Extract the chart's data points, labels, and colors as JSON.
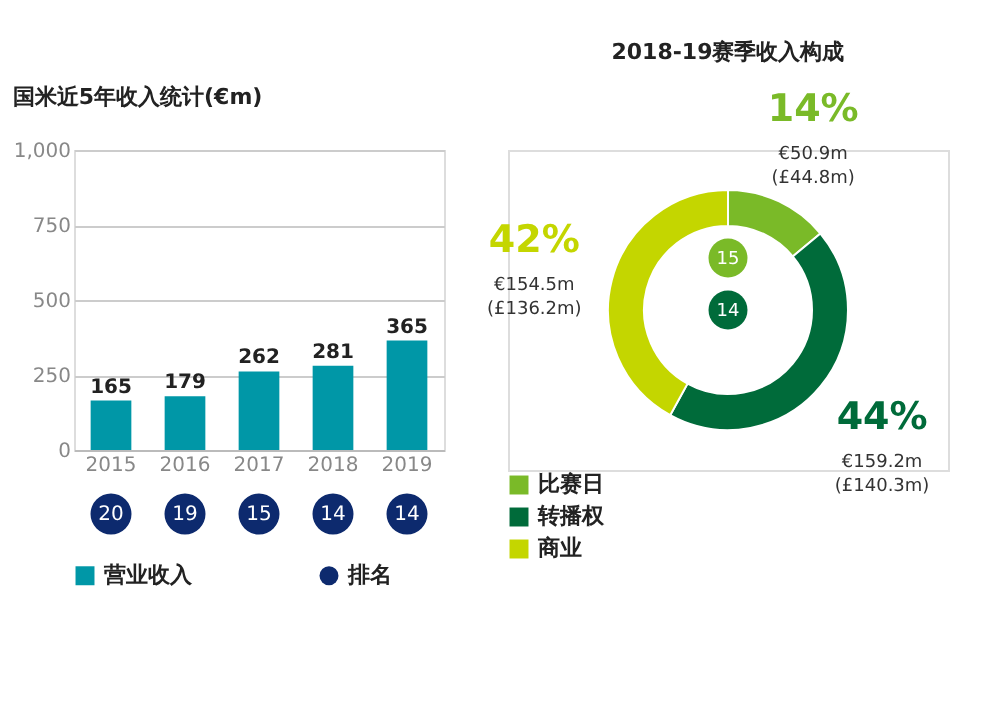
{
  "chart_data": [
    {
      "type": "bar",
      "title": "国米近5年收入统计(€m)",
      "categories": [
        "2015",
        "2016",
        "2017",
        "2018",
        "2019"
      ],
      "series": [
        {
          "name": "营业收入",
          "color": "#0097a7",
          "values": [
            165,
            179,
            262,
            281,
            365
          ]
        },
        {
          "name": "排名",
          "type": "scatter",
          "color": "#0d2a6e",
          "values": [
            null,
            null,
            null,
            null,
            null
          ],
          "value_labels": [
            "20",
            "19",
            "15",
            "14",
            "14"
          ]
        }
      ],
      "ylim": [
        0,
        1000
      ],
      "yticks": [
        0,
        250,
        500,
        750,
        {
          "value": 1000,
          "label": "1,000"
        }
      ],
      "grid": "y",
      "data_labels": true,
      "legend": "bottom"
    },
    {
      "type": "donut",
      "title": "2018-19赛季收入构成",
      "categories": [
        "比赛日",
        "转播权",
        "商业"
      ],
      "values": [
        14,
        44,
        42
      ],
      "colors": [
        "#7aba28",
        "#006b3a",
        "#c4d600"
      ],
      "value_labels": [
        "14%",
        "44%",
        "42%"
      ],
      "annotations": [
        {
          "text": "€50.9m (£44.8m)",
          "x": "比赛日"
        },
        {
          "text": "€159.2m (£140.3m)",
          "x": "转播权"
        },
        {
          "text": "€154.5m (£136.2m)",
          "x": "商业"
        },
        "15",
        "14"
      ],
      "legend": "bottom left"
    }
  ]
}
